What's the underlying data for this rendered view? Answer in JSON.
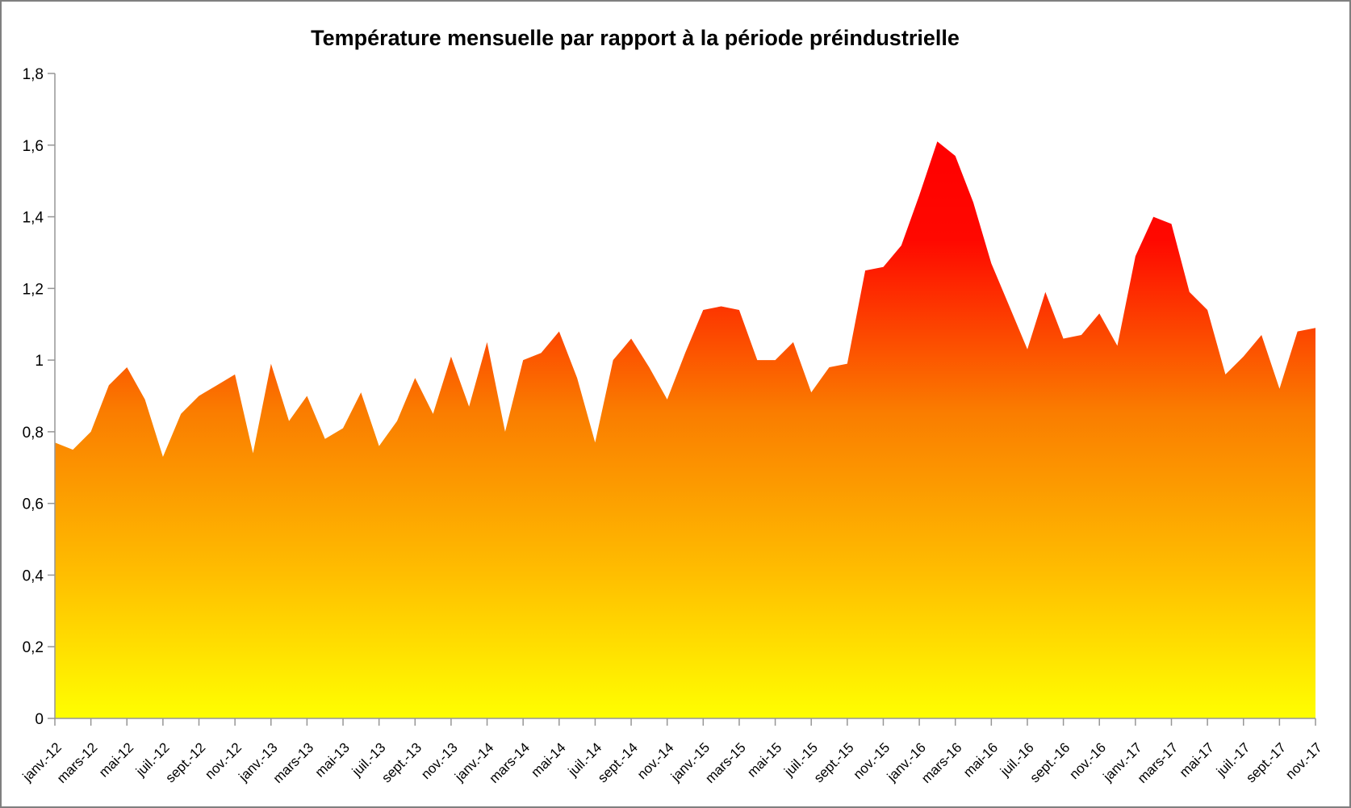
{
  "frame": {
    "border_color": "#7F7F7F",
    "background_color": "#FFFFFF"
  },
  "chart_data": {
    "type": "area",
    "title": "Température mensuelle par rapport à la période préindustrielle",
    "grid": false,
    "legend": false,
    "x_frequency": "monthly",
    "x_start": "janv.-12",
    "x_end": "nov.-17",
    "x_tick_labels": [
      "janv.-12",
      "mars-12",
      "mai-12",
      "juil.-12",
      "sept.-12",
      "nov.-12",
      "janv.-13",
      "mars-13",
      "mai-13",
      "juil.-13",
      "sept.-13",
      "nov.-13",
      "janv.-14",
      "mars-14",
      "mai-14",
      "juil.-14",
      "sept.-14",
      "nov.-14",
      "janv.-15",
      "mars-15",
      "mai-15",
      "juil.-15",
      "sept.-15",
      "nov.-15",
      "janv.-16",
      "mars-16",
      "mai-16",
      "juil.-16",
      "sept.-16",
      "nov.-16",
      "janv.-17",
      "mars-17",
      "mai-17",
      "juil.-17",
      "sept.-17",
      "nov.-17"
    ],
    "y_tick_labels": [
      "0",
      "0,2",
      "0,4",
      "0,6",
      "0,8",
      "1",
      "1,2",
      "1,4",
      "1,6",
      "1,8"
    ],
    "ylim": [
      0,
      1.8
    ],
    "values": [
      0.77,
      0.75,
      0.8,
      0.93,
      0.98,
      0.89,
      0.73,
      0.85,
      0.9,
      0.93,
      0.96,
      0.74,
      0.99,
      0.83,
      0.9,
      0.78,
      0.81,
      0.91,
      0.76,
      0.83,
      0.95,
      0.85,
      1.01,
      0.87,
      1.05,
      0.8,
      1.0,
      1.02,
      1.08,
      0.95,
      0.77,
      1.0,
      1.06,
      0.98,
      0.89,
      1.02,
      1.14,
      1.15,
      1.14,
      1.0,
      1.0,
      1.05,
      0.91,
      0.98,
      0.99,
      1.25,
      1.26,
      1.32,
      1.46,
      1.61,
      1.57,
      1.44,
      1.27,
      1.15,
      1.03,
      1.19,
      1.06,
      1.07,
      1.13,
      1.04,
      1.29,
      1.4,
      1.38,
      1.19,
      1.14,
      0.96,
      1.01,
      1.07,
      0.92,
      1.08,
      1.09
    ],
    "gradient_stops": [
      {
        "offset": 0.0,
        "color": "#FF0000"
      },
      {
        "offset": 0.17,
        "color": "#FF0800"
      },
      {
        "offset": 0.47,
        "color": "#FA7D00"
      },
      {
        "offset": 0.75,
        "color": "#FFBE00"
      },
      {
        "offset": 1.0,
        "color": "#FFFF00"
      }
    ],
    "axis_color": "#969696",
    "text_color": "#000000"
  }
}
